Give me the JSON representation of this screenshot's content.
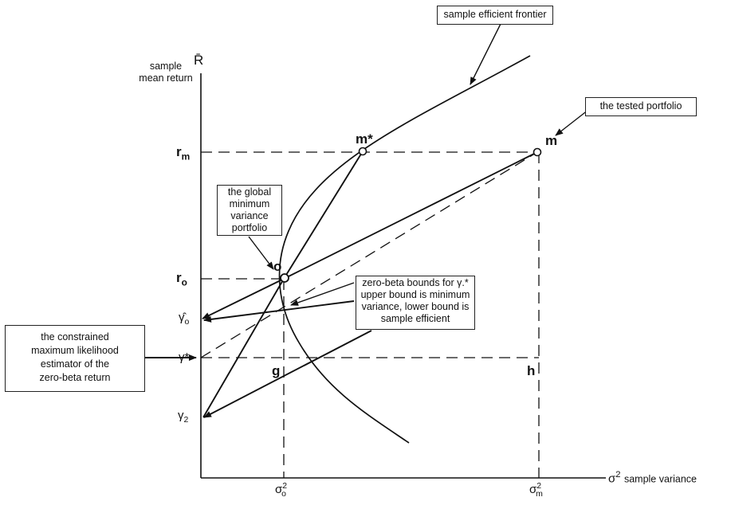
{
  "axes": {
    "y_label_line1": "sample",
    "y_label_line2": "mean return",
    "y_symbol": "R̄",
    "x_symbol": "σ",
    "x_symbol_sup": "2",
    "x_label": "sample variance"
  },
  "ticks": {
    "r_m": "r",
    "r_m_sub": "m",
    "r_o": "r",
    "r_o_sub": "o",
    "gamma_hat": "γ̂",
    "gamma_hat_sub": "o",
    "gamma_star": "γ*",
    "gamma_2": "γ",
    "gamma_2_sub": "2",
    "sigma_o": "σ",
    "sigma_o_sup": "2",
    "sigma_o_sub": "o",
    "sigma_m": "σ",
    "sigma_m_sup": "2",
    "sigma_m_sub": "m"
  },
  "points": {
    "m_star": "m*",
    "m": "m",
    "o": "o",
    "g": "g",
    "h": "h"
  },
  "annotations": {
    "frontier": "sample efficient frontier",
    "tested": "the tested portfolio",
    "global_min": [
      "the global",
      "minimum",
      "variance",
      "portfolio"
    ],
    "zero_beta_bounds": [
      "zero-beta bounds for γ.*",
      "upper bound is minimum",
      "variance, lower bound is",
      "sample efficient"
    ],
    "constrained_ml": [
      "the constrained",
      "maximum likelihood",
      "estimator of the",
      "zero-beta return"
    ]
  }
}
